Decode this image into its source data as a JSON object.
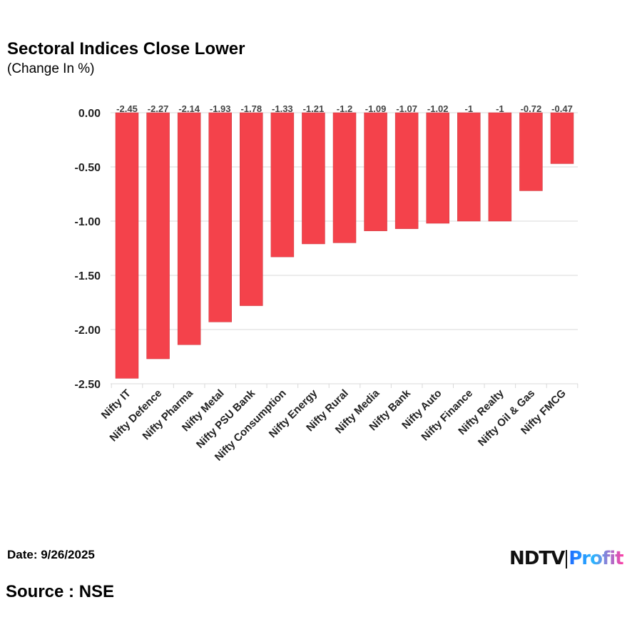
{
  "header": {
    "title": "Sectoral Indices Close Lower",
    "subtitle": "(Change In %)"
  },
  "footer": {
    "date": "Date: 9/26/2025",
    "source": "Source : NSE",
    "logo_ndtv": "NDTV",
    "logo_profit": "Profit"
  },
  "colors": {
    "bar": "#f4424b",
    "grid": "#d9d9d9"
  },
  "chart_data": {
    "type": "bar",
    "title": "Sectoral Indices Close Lower",
    "subtitle": "(Change In %)",
    "categories": [
      "Nifty IT",
      "Nifty Defence",
      "Nifty Pharma",
      "Nifty Metal",
      "Nifty PSU Bank",
      "Nifty Consumption",
      "Nifty Energy",
      "Nifty Rural",
      "Nifty Media",
      "Nifty Bank",
      "Nifty Auto",
      "Nifty Finance",
      "Nifty Realty",
      "Nifty Oil & Gas",
      "Nifty FMCG"
    ],
    "values": [
      -2.45,
      -2.27,
      -2.14,
      -1.93,
      -1.78,
      -1.33,
      -1.21,
      -1.2,
      -1.09,
      -1.07,
      -1.02,
      -1,
      -1,
      -0.72,
      -0.47
    ],
    "ylim": [
      -2.5,
      0
    ],
    "yticks": [
      "0.00",
      "-0.50",
      "-1.00",
      "-1.50",
      "-2.00",
      "-2.50"
    ],
    "grid": true
  }
}
